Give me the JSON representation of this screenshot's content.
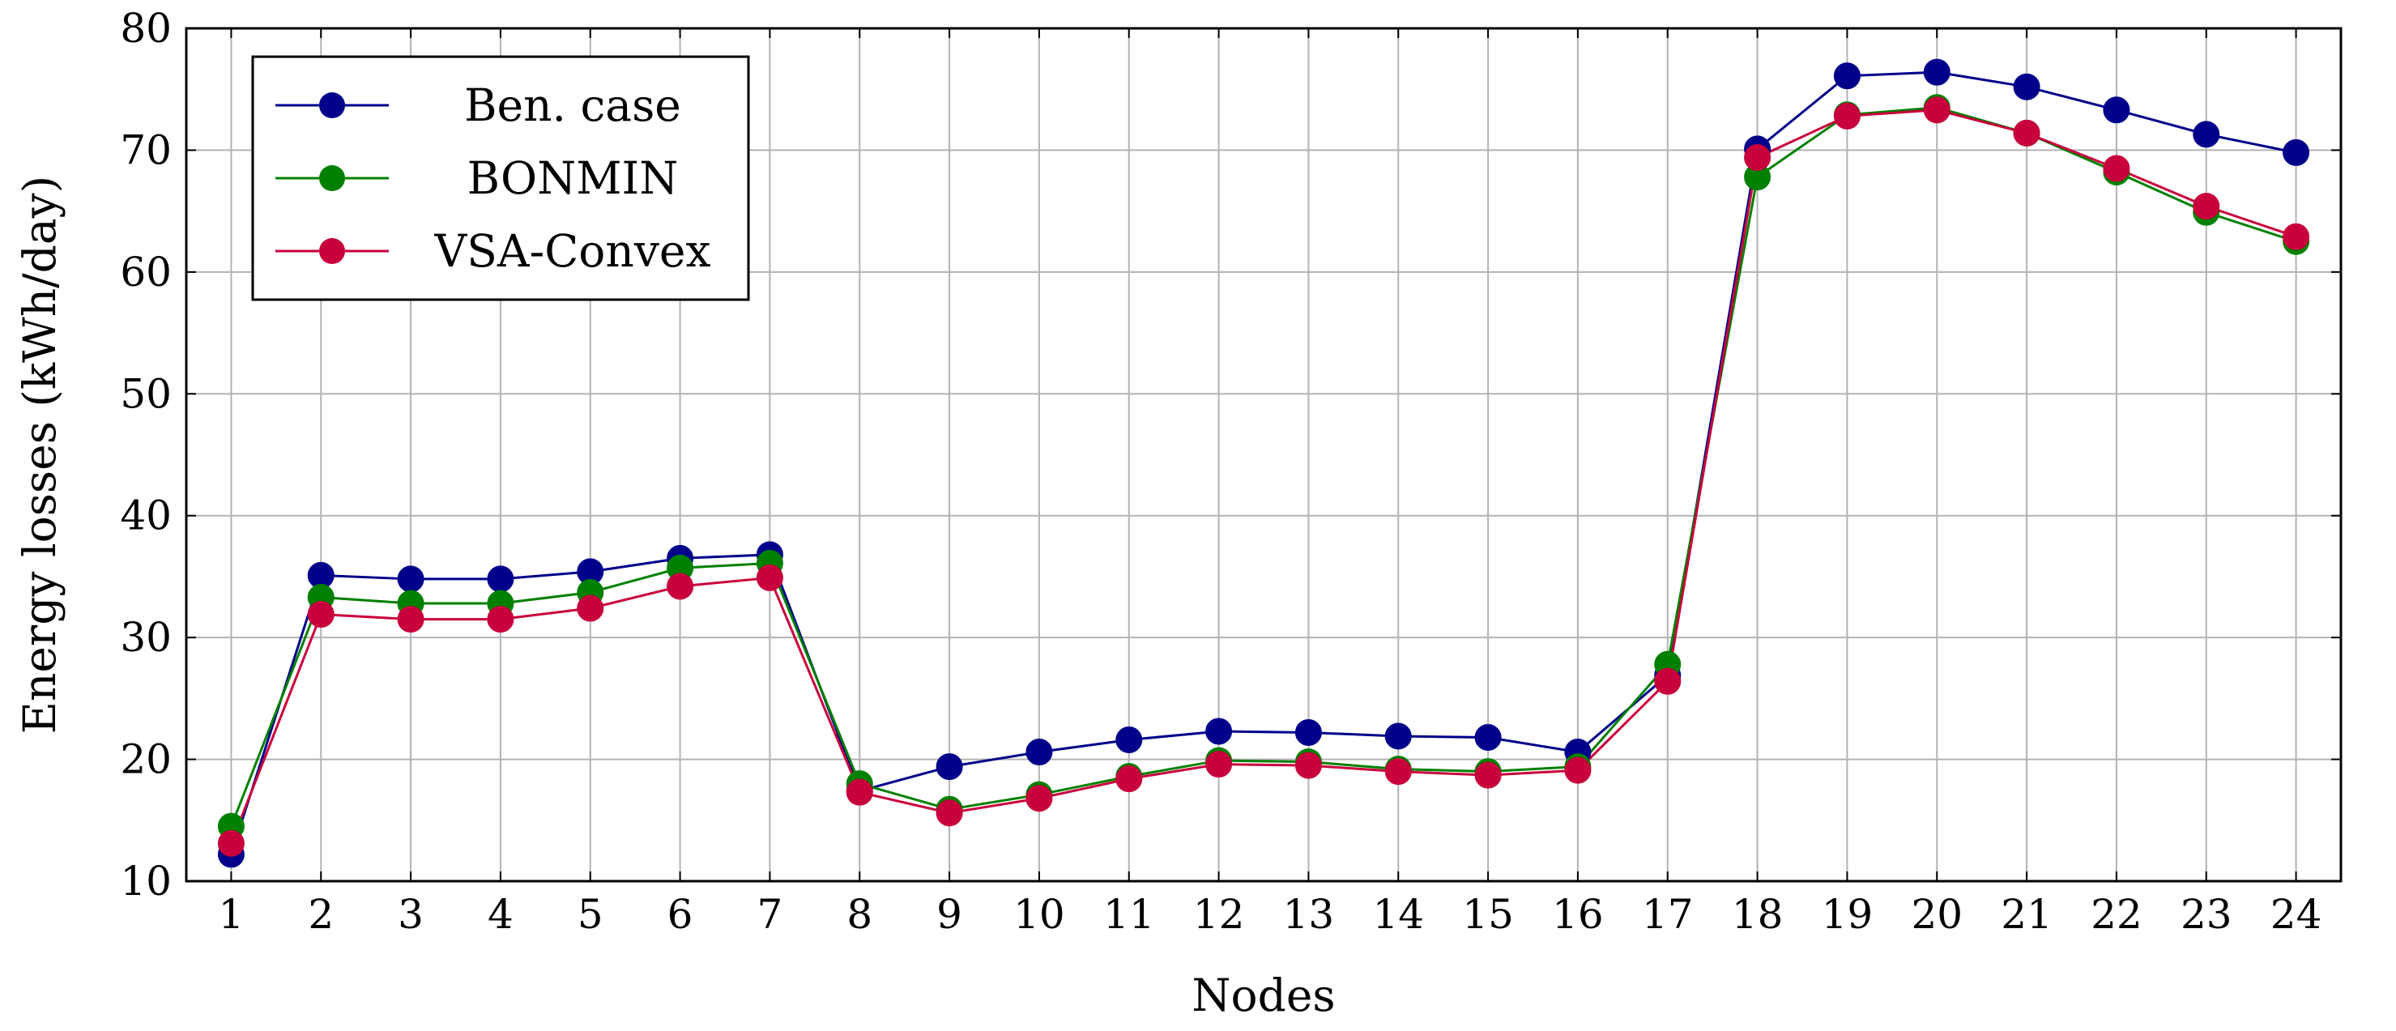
{
  "chart_data": {
    "type": "line",
    "xlabel": "Nodes",
    "ylabel": "Energy losses (kWh/day)",
    "xlim": [
      0.5,
      24.5
    ],
    "ylim": [
      10,
      80
    ],
    "x": [
      1,
      2,
      3,
      4,
      5,
      6,
      7,
      8,
      9,
      10,
      11,
      12,
      13,
      14,
      15,
      16,
      17,
      18,
      19,
      20,
      21,
      22,
      23,
      24
    ],
    "x_ticks": [
      "1",
      "2",
      "3",
      "4",
      "5",
      "6",
      "7",
      "8",
      "9",
      "10",
      "11",
      "12",
      "13",
      "14",
      "15",
      "16",
      "17",
      "18",
      "19",
      "20",
      "21",
      "22",
      "23",
      "24"
    ],
    "y_ticks": [
      "10",
      "20",
      "30",
      "40",
      "50",
      "60",
      "70",
      "80"
    ],
    "grid": true,
    "legend_position": "top-left",
    "series": [
      {
        "name": "Ben. case",
        "color": "#00008b",
        "values": [
          12.2,
          35.1,
          34.8,
          34.8,
          35.4,
          36.5,
          36.8,
          17.4,
          19.4,
          20.6,
          21.6,
          22.3,
          22.2,
          21.9,
          21.8,
          20.6,
          26.9,
          70.1,
          76.1,
          76.4,
          75.2,
          73.3,
          71.3,
          69.8
        ]
      },
      {
        "name": "BONMIN",
        "color": "#008000",
        "values": [
          14.5,
          33.3,
          32.8,
          32.8,
          33.7,
          35.7,
          36.1,
          18.0,
          15.9,
          17.1,
          18.6,
          19.9,
          19.8,
          19.2,
          19.0,
          19.4,
          27.8,
          67.8,
          72.9,
          73.5,
          71.4,
          68.2,
          64.9,
          62.5
        ]
      },
      {
        "name": "VSA-Convex",
        "color": "#c8003c",
        "values": [
          13.1,
          31.9,
          31.5,
          31.5,
          32.4,
          34.2,
          34.9,
          17.3,
          15.6,
          16.8,
          18.4,
          19.6,
          19.5,
          19.0,
          18.7,
          19.1,
          26.4,
          69.4,
          72.8,
          73.3,
          71.4,
          68.5,
          65.4,
          62.9
        ]
      }
    ]
  }
}
